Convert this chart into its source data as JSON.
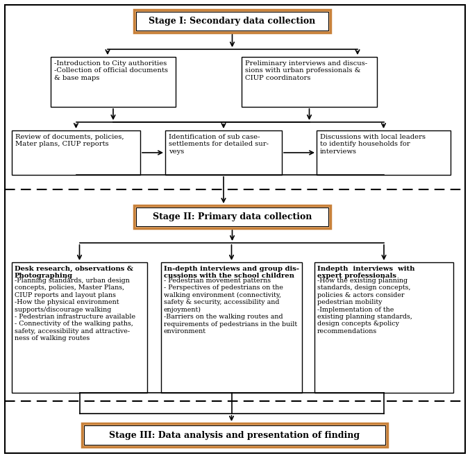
{
  "stage1_title": "Stage I: Secondary data collection",
  "stage2_title": "Stage II: Primary data collection",
  "stage3_title": "Stage III: Data analysis and presentation of finding",
  "stage1_box1": "-Introduction to City authorities\n-Collection of official documents\n& base maps",
  "stage1_box2": "Preliminary interviews and discus-\nsions with urban professionals &\nCIUP coordinators",
  "stage1_box3": "Review of documents, policies,\nMater plans, CIUP reports",
  "stage1_box4": "Identification of sub case-\nsettlements for detailed sur-\nveys",
  "stage1_box5": "Discussions with local leaders\nto identify households for\ninterviews",
  "stage2_box1_title": "Desk research, observations &\nPhotographing",
  "stage2_box1_body": "-Planning standards, urban design\nconcepts, policies, Master Plans,\nCIUP reports and layout plans\n-How the physical environment\nsupports/discourage walking\n- Pedestrian infrastructure available\n- Connectivity of the walking paths,\nsafety, accessibility and attractive-\nness of walking routes",
  "stage2_box2_title": "In-depth interviews and group dis-\ncussions with the school children",
  "stage2_box2_body": "- Pedestrian movement patterns\n- Perspectives of pedestrians on the\nwalking environment (connectivity,\nsafety & security, accessibility and\nenjoyment)\n-Barriers on the walking routes and\nrequirements of pedestrians in the built\nenvironment",
  "stage2_box3_title": "Indepth  interviews  with\nexpert professionals",
  "stage2_box3_body": "-How the existing planning\nstandards, design concepts,\npolicies & actors consider\npedestrian mobility\n-Implementation of the\nexisting planning standards,\ndesign concepts &policy\nrecommendations",
  "header_box_fill": "#f5c18a",
  "header_box_edge": "#c8813a",
  "content_box_fill": "#ffffff",
  "content_box_edge": "#000000",
  "bg_color": "#ffffff"
}
